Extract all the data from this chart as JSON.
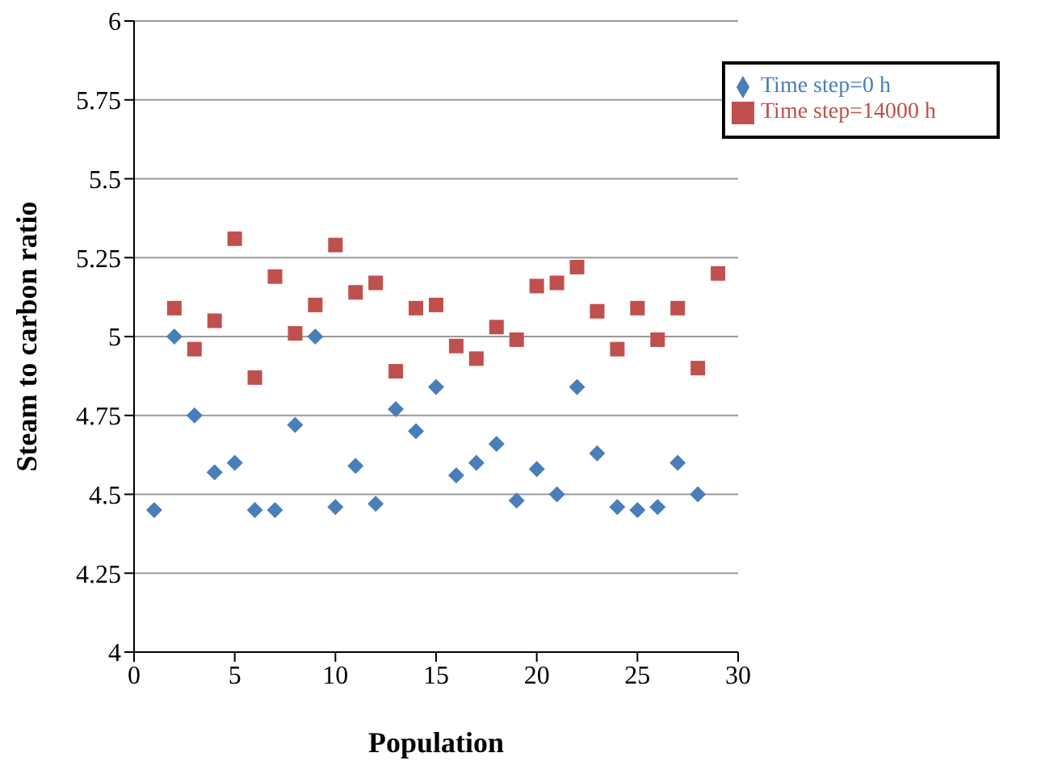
{
  "chart_data": {
    "type": "scatter",
    "xlabel": "Population",
    "ylabel": "Steam to carbon ratio",
    "xlim": [
      0,
      30
    ],
    "xticks": [
      0,
      5,
      10,
      15,
      20,
      25,
      30
    ],
    "ylim": [
      4,
      6
    ],
    "yticks": [
      4,
      4.25,
      4.5,
      4.75,
      5,
      5.25,
      5.5,
      5.75,
      6
    ],
    "grid": "y",
    "legend": "top right",
    "series": [
      {
        "name": "Time step=0 h",
        "color": "#4a7ebb",
        "marker": "diamond",
        "x": [
          1,
          2,
          3,
          4,
          5,
          6,
          7,
          8,
          9,
          10,
          11,
          12,
          13,
          14,
          15,
          16,
          17,
          18,
          19,
          20,
          21,
          22,
          23,
          24,
          25,
          26,
          27,
          28
        ],
        "values": [
          4.45,
          5.0,
          4.75,
          4.57,
          4.6,
          4.45,
          4.45,
          4.72,
          5.0,
          4.46,
          4.59,
          4.47,
          4.77,
          4.7,
          4.84,
          4.56,
          4.6,
          4.66,
          4.48,
          4.58,
          4.5,
          4.84,
          4.63,
          4.46,
          4.45,
          4.46,
          4.6,
          4.5
        ]
      },
      {
        "name": "Time step=14000 h",
        "color": "#c0504d",
        "marker": "square",
        "x": [
          2,
          3,
          4,
          5,
          6,
          7,
          8,
          9,
          10,
          11,
          12,
          13,
          14,
          15,
          16,
          17,
          18,
          19,
          20,
          21,
          22,
          23,
          24,
          25,
          26,
          27,
          28,
          29
        ],
        "values": [
          5.09,
          4.96,
          5.05,
          5.31,
          4.87,
          5.19,
          5.01,
          5.1,
          5.29,
          5.14,
          5.17,
          4.89,
          5.09,
          5.1,
          4.97,
          4.93,
          5.03,
          4.99,
          5.16,
          5.17,
          5.22,
          5.08,
          4.96,
          5.09,
          4.99,
          5.09,
          4.9,
          5.2
        ]
      }
    ]
  }
}
